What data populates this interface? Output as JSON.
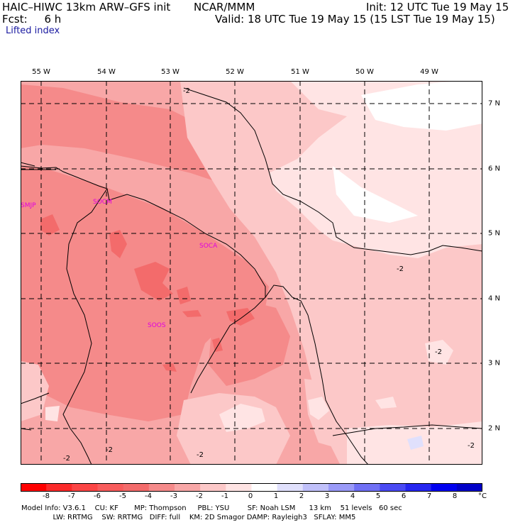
{
  "header": {
    "model": "HAIC–HIWC 13km ARW–GFS init",
    "org": "NCAR/MMM",
    "init": "Init: 12 UTC Tue 19 May 15",
    "fcst": "Fcst:     6 h",
    "valid": "Valid: 18 UTC Tue 19 May 15 (15 LST Tue 19 May 15)",
    "field": "Lifted index"
  },
  "map": {
    "lon_labels": [
      "55 W",
      "54 W",
      "53 W",
      "52 W",
      "51 W",
      "50 W",
      "49 W"
    ],
    "lat_labels": [
      "7 N",
      "6 N",
      "5 N",
      "4 N",
      "3 N",
      "2 N"
    ],
    "stations": [
      "SMJP",
      "SOCM",
      "SOCA",
      "SOOS"
    ],
    "contour_labels": [
      "-2",
      "-2",
      "-2",
      "-2",
      "-2",
      "-2",
      "-2"
    ],
    "colors": {
      "v_lt_-4": "#f36b6b",
      "v_-4_-3": "#f58a8a",
      "v_-3_-2": "#f8a7a7",
      "v_-2_-1": "#fcc8c8",
      "v_-1_0": "#ffe4e4",
      "v_0_1": "#ffffff",
      "v_1_2": "#e0e0fc"
    }
  },
  "colorbar": {
    "labels": [
      "-8",
      "-7",
      "-6",
      "-5",
      "-4",
      "-3",
      "-2",
      "-1",
      "0",
      "1",
      "2",
      "3",
      "4",
      "5",
      "6",
      "7",
      "8"
    ],
    "unit": "°C",
    "colors": [
      "#ff0000",
      "#fb2a2a",
      "#fb4545",
      "#f85c5c",
      "#f36b6b",
      "#f58a8a",
      "#f8a7a7",
      "#fcc8c8",
      "#ffe4e4",
      "#ffffff",
      "#e0e0fc",
      "#c0c0fa",
      "#9a9af8",
      "#7070f5",
      "#4a4af3",
      "#2626f0",
      "#0000f0",
      "#0000c8"
    ]
  },
  "footer": {
    "line1": "Model Info: V3.6.1    CU: KF       MP: Thompson     PBL: YSU        SF: Noah LSM      13 km    51 levels   60 sec",
    "line2": "              LW: RRTMG    SW: RRTMG   DIFF: full    KM: 2D Smagor DAMP: Rayleigh3   SFLAY: MM5"
  }
}
